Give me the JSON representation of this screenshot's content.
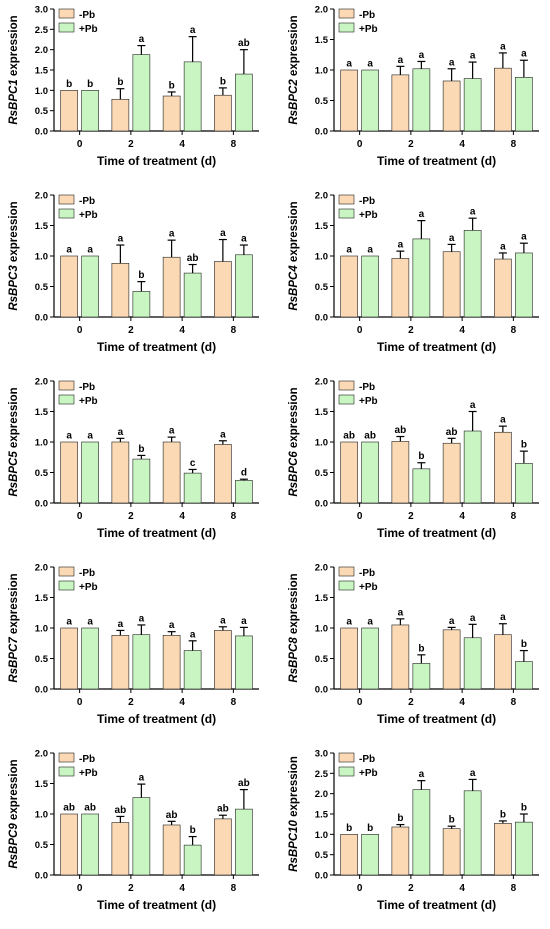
{
  "style": {
    "minus_color": "#fbd9b4",
    "plus_color": "#c8f5c2",
    "axis_color": "#000000",
    "text_color": "#000000"
  },
  "chart_data": [
    {
      "type": "bar",
      "ylabel_gene": "RsBPC1",
      "ylabel_suffix": " expression",
      "xlabel": "Time of treatment (d)",
      "categories": [
        "0",
        "2",
        "4",
        "8"
      ],
      "ylim": [
        0,
        3.0
      ],
      "yticks": [
        "0.0",
        "0.5",
        "1.0",
        "1.5",
        "2.0",
        "2.5",
        "3.0"
      ],
      "legend": [
        "-Pb",
        "+Pb"
      ],
      "series": [
        {
          "name": "-Pb",
          "values": [
            1.0,
            0.78,
            0.86,
            0.88
          ],
          "errors": [
            0.0,
            0.26,
            0.1,
            0.18
          ],
          "letters": [
            "b",
            "b",
            "b",
            "b"
          ]
        },
        {
          "name": "+Pb",
          "values": [
            1.0,
            1.88,
            1.7,
            1.4
          ],
          "errors": [
            0.0,
            0.22,
            0.62,
            0.6
          ],
          "letters": [
            "b",
            "a",
            "a",
            "ab"
          ]
        }
      ]
    },
    {
      "type": "bar",
      "ylabel_gene": "RsBPC2",
      "ylabel_suffix": " expression",
      "xlabel": "Time of treatment (d)",
      "categories": [
        "0",
        "2",
        "4",
        "8"
      ],
      "ylim": [
        0,
        2.0
      ],
      "yticks": [
        "0.0",
        "0.5",
        "1.0",
        "1.5",
        "2.0"
      ],
      "legend": [
        "-Pb",
        "+Pb"
      ],
      "series": [
        {
          "name": "-Pb",
          "values": [
            1.0,
            0.92,
            0.82,
            1.03
          ],
          "errors": [
            0.0,
            0.14,
            0.2,
            0.25
          ],
          "letters": [
            "a",
            "a",
            "a",
            "a"
          ]
        },
        {
          "name": "+Pb",
          "values": [
            1.0,
            1.02,
            0.86,
            0.88
          ],
          "errors": [
            0.0,
            0.12,
            0.27,
            0.28
          ],
          "letters": [
            "a",
            "a",
            "a",
            "a"
          ]
        }
      ]
    },
    {
      "type": "bar",
      "ylabel_gene": "RsBPC3",
      "ylabel_suffix": " expression",
      "xlabel": "Time of treatment (d)",
      "categories": [
        "0",
        "2",
        "4",
        "8"
      ],
      "ylim": [
        0,
        2.0
      ],
      "yticks": [
        "0.0",
        "0.5",
        "1.0",
        "1.5",
        "2.0"
      ],
      "legend": [
        "-Pb",
        "+Pb"
      ],
      "series": [
        {
          "name": "-Pb",
          "values": [
            1.0,
            0.88,
            0.98,
            0.91
          ],
          "errors": [
            0.0,
            0.3,
            0.28,
            0.36
          ],
          "letters": [
            "a",
            "a",
            "a",
            "a"
          ]
        },
        {
          "name": "+Pb",
          "values": [
            1.0,
            0.42,
            0.72,
            1.02
          ],
          "errors": [
            0.0,
            0.16,
            0.14,
            0.16
          ],
          "letters": [
            "a",
            "b",
            "ab",
            "a"
          ]
        }
      ]
    },
    {
      "type": "bar",
      "ylabel_gene": "RsBPC4",
      "ylabel_suffix": " expression",
      "xlabel": "Time of treatment (d)",
      "categories": [
        "0",
        "2",
        "4",
        "8"
      ],
      "ylim": [
        0,
        2.0
      ],
      "yticks": [
        "0.0",
        "0.5",
        "1.0",
        "1.5",
        "2.0"
      ],
      "legend": [
        "-Pb",
        "+Pb"
      ],
      "series": [
        {
          "name": "-Pb",
          "values": [
            1.0,
            0.96,
            1.07,
            0.95
          ],
          "errors": [
            0.0,
            0.12,
            0.12,
            0.1
          ],
          "letters": [
            "a",
            "a",
            "a",
            "a"
          ]
        },
        {
          "name": "+Pb",
          "values": [
            1.0,
            1.28,
            1.42,
            1.05
          ],
          "errors": [
            0.0,
            0.3,
            0.2,
            0.16
          ],
          "letters": [
            "a",
            "a",
            "a",
            "a"
          ]
        }
      ]
    },
    {
      "type": "bar",
      "ylabel_gene": "RsBPC5",
      "ylabel_suffix": " expression",
      "xlabel": "Time of treatment (d)",
      "categories": [
        "0",
        "2",
        "4",
        "8"
      ],
      "ylim": [
        0,
        2.0
      ],
      "yticks": [
        "0.0",
        "0.5",
        "1.0",
        "1.5",
        "2.0"
      ],
      "legend": [
        "-Pb",
        "+Pb"
      ],
      "series": [
        {
          "name": "-Pb",
          "values": [
            1.0,
            1.0,
            1.0,
            0.96
          ],
          "errors": [
            0.0,
            0.06,
            0.08,
            0.06
          ],
          "letters": [
            "a",
            "a",
            "a",
            "a"
          ]
        },
        {
          "name": "+Pb",
          "values": [
            1.0,
            0.72,
            0.49,
            0.37
          ],
          "errors": [
            0.0,
            0.06,
            0.06,
            0.02
          ],
          "letters": [
            "a",
            "b",
            "c",
            "d"
          ]
        }
      ]
    },
    {
      "type": "bar",
      "ylabel_gene": "RsBPC6",
      "ylabel_suffix": " expression",
      "xlabel": "Time of treatment (d)",
      "categories": [
        "0",
        "2",
        "4",
        "8"
      ],
      "ylim": [
        0,
        2.0
      ],
      "yticks": [
        "0.0",
        "0.5",
        "1.0",
        "1.5",
        "2.0"
      ],
      "legend": [
        "-Pb",
        "+Pb"
      ],
      "series": [
        {
          "name": "-Pb",
          "values": [
            1.0,
            1.01,
            0.98,
            1.16
          ],
          "errors": [
            0.0,
            0.08,
            0.08,
            0.1
          ],
          "letters": [
            "ab",
            "ab",
            "ab",
            "a"
          ]
        },
        {
          "name": "+Pb",
          "values": [
            1.0,
            0.56,
            1.18,
            0.65
          ],
          "errors": [
            0.0,
            0.1,
            0.32,
            0.2
          ],
          "letters": [
            "ab",
            "b",
            "a",
            "b"
          ]
        }
      ]
    },
    {
      "type": "bar",
      "ylabel_gene": "RsBPC7",
      "ylabel_suffix": " expression",
      "xlabel": "Time of treatment (d)",
      "categories": [
        "0",
        "2",
        "4",
        "8"
      ],
      "ylim": [
        0,
        2.0
      ],
      "yticks": [
        "0.0",
        "0.5",
        "1.0",
        "1.5",
        "2.0"
      ],
      "legend": [
        "-Pb",
        "+Pb"
      ],
      "series": [
        {
          "name": "-Pb",
          "values": [
            1.0,
            0.88,
            0.88,
            0.96
          ],
          "errors": [
            0.0,
            0.08,
            0.06,
            0.06
          ],
          "letters": [
            "a",
            "a",
            "a",
            "a"
          ]
        },
        {
          "name": "+Pb",
          "values": [
            1.0,
            0.89,
            0.63,
            0.87
          ],
          "errors": [
            0.0,
            0.16,
            0.16,
            0.14
          ],
          "letters": [
            "a",
            "a",
            "a",
            "a"
          ]
        }
      ]
    },
    {
      "type": "bar",
      "ylabel_gene": "RsBPC8",
      "ylabel_suffix": " expression",
      "xlabel": "Time of treatment (d)",
      "categories": [
        "0",
        "2",
        "4",
        "8"
      ],
      "ylim": [
        0,
        2.0
      ],
      "yticks": [
        "0.0",
        "0.5",
        "1.0",
        "1.5",
        "2.0"
      ],
      "legend": [
        "-Pb",
        "+Pb"
      ],
      "series": [
        {
          "name": "-Pb",
          "values": [
            1.0,
            1.05,
            0.97,
            0.89
          ],
          "errors": [
            0.0,
            0.1,
            0.04,
            0.18
          ],
          "letters": [
            "a",
            "a",
            "a",
            "a"
          ]
        },
        {
          "name": "+Pb",
          "values": [
            1.0,
            0.42,
            0.84,
            0.45
          ],
          "errors": [
            0.0,
            0.14,
            0.22,
            0.18
          ],
          "letters": [
            "a",
            "b",
            "a",
            "b"
          ]
        }
      ]
    },
    {
      "type": "bar",
      "ylabel_gene": "RsBPC9",
      "ylabel_suffix": " expression",
      "xlabel": "Time of treatment (d)",
      "categories": [
        "0",
        "2",
        "4",
        "8"
      ],
      "ylim": [
        0,
        2.0
      ],
      "yticks": [
        "0.0",
        "0.5",
        "1.0",
        "1.5",
        "2.0"
      ],
      "legend": [
        "-Pb",
        "+Pb"
      ],
      "series": [
        {
          "name": "-Pb",
          "values": [
            1.0,
            0.86,
            0.82,
            0.92
          ],
          "errors": [
            0.0,
            0.1,
            0.06,
            0.06
          ],
          "letters": [
            "ab",
            "ab",
            "ab",
            "ab"
          ]
        },
        {
          "name": "+Pb",
          "values": [
            1.0,
            1.27,
            0.49,
            1.08
          ],
          "errors": [
            0.0,
            0.22,
            0.14,
            0.32
          ],
          "letters": [
            "ab",
            "a",
            "b",
            "ab"
          ]
        }
      ]
    },
    {
      "type": "bar",
      "ylabel_gene": "RsBPC10",
      "ylabel_suffix": " expression",
      "xlabel": "Time of treatment (d)",
      "categories": [
        "0",
        "2",
        "4",
        "8"
      ],
      "ylim": [
        0,
        3.0
      ],
      "yticks": [
        "0.0",
        "0.5",
        "1.0",
        "1.5",
        "2.0",
        "2.5",
        "3.0"
      ],
      "legend": [
        "-Pb",
        "+Pb"
      ],
      "series": [
        {
          "name": "-Pb",
          "values": [
            1.0,
            1.18,
            1.14,
            1.27
          ],
          "errors": [
            0.0,
            0.06,
            0.06,
            0.06
          ],
          "letters": [
            "b",
            "b",
            "b",
            "b"
          ]
        },
        {
          "name": "+Pb",
          "values": [
            1.0,
            2.1,
            2.07,
            1.3
          ],
          "errors": [
            0.0,
            0.22,
            0.28,
            0.2
          ],
          "letters": [
            "b",
            "a",
            "a",
            "b"
          ]
        }
      ]
    }
  ]
}
